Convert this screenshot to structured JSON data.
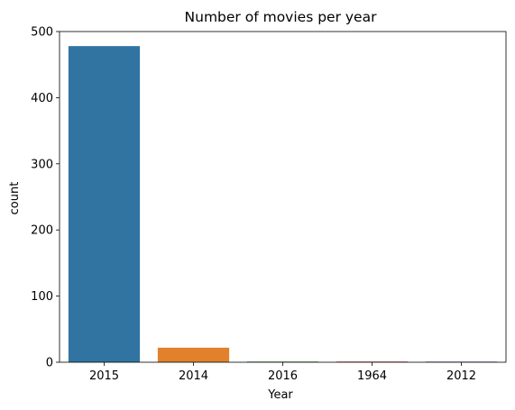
{
  "chart_data": {
    "type": "bar",
    "title": "Number of movies per year",
    "xlabel": "Year",
    "ylabel": "count",
    "categories": [
      "2015",
      "2014",
      "2016",
      "1964",
      "2012"
    ],
    "values": [
      478,
      22,
      1,
      1,
      1
    ],
    "colors": [
      "#3274a1",
      "#e1812c",
      "#3a923a",
      "#c03d3e",
      "#9372b2"
    ],
    "ylim": [
      0,
      500
    ],
    "yticks": [
      0,
      100,
      200,
      300,
      400,
      500
    ],
    "grid": false,
    "legend": "none"
  }
}
